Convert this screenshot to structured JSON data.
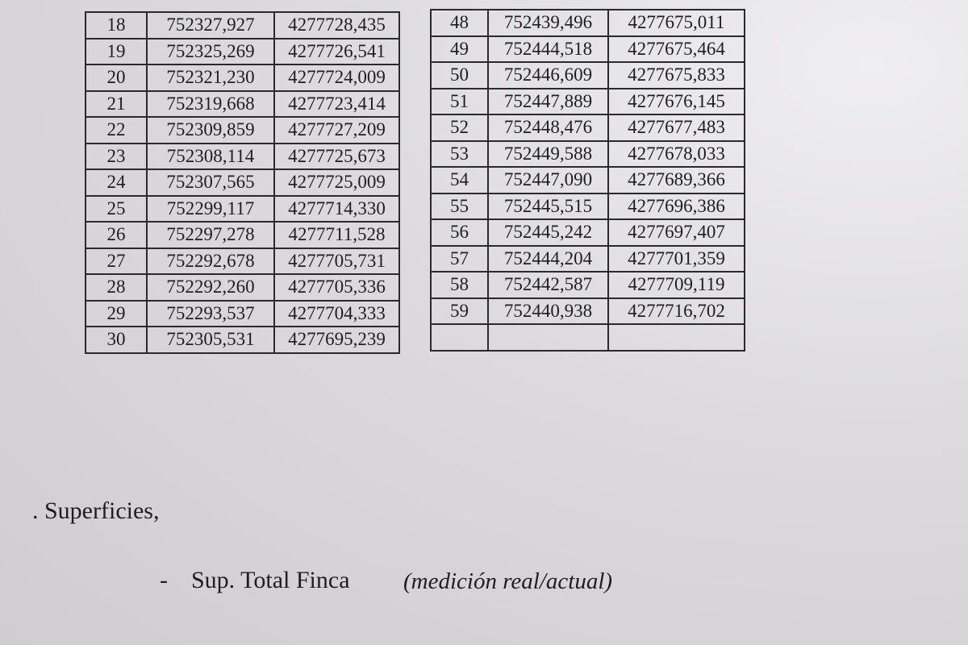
{
  "left_table": {
    "rows": [
      [
        "18",
        "752327,927",
        "4277728,435"
      ],
      [
        "19",
        "752325,269",
        "4277726,541"
      ],
      [
        "20",
        "752321,230",
        "4277724,009"
      ],
      [
        "21",
        "752319,668",
        "4277723,414"
      ],
      [
        "22",
        "752309,859",
        "4277727,209"
      ],
      [
        "23",
        "752308,114",
        "4277725,673"
      ],
      [
        "24",
        "752307,565",
        "4277725,009"
      ],
      [
        "25",
        "752299,117",
        "4277714,330"
      ],
      [
        "26",
        "752297,278",
        "4277711,528"
      ],
      [
        "27",
        "752292,678",
        "4277705,731"
      ],
      [
        "28",
        "752292,260",
        "4277705,336"
      ],
      [
        "29",
        "752293,537",
        "4277704,333"
      ],
      [
        "30",
        "752305,531",
        "4277695,239"
      ]
    ]
  },
  "right_table": {
    "rows": [
      [
        "48",
        "752439,496",
        "4277675,011"
      ],
      [
        "49",
        "752444,518",
        "4277675,464"
      ],
      [
        "50",
        "752446,609",
        "4277675,833"
      ],
      [
        "51",
        "752447,889",
        "4277676,145"
      ],
      [
        "52",
        "752448,476",
        "4277677,483"
      ],
      [
        "53",
        "752449,588",
        "4277678,033"
      ],
      [
        "54",
        "752447,090",
        "4277689,366"
      ],
      [
        "55",
        "752445,515",
        "4277696,386"
      ],
      [
        "56",
        "752445,242",
        "4277697,407"
      ],
      [
        "57",
        "752444,204",
        "4277701,359"
      ],
      [
        "58",
        "752442,587",
        "4277709,119"
      ],
      [
        "59",
        "752440,938",
        "4277716,702"
      ]
    ]
  },
  "section": {
    "title": ". Superficies,",
    "item": {
      "bullet": "-",
      "label": "Sup. Total Finca",
      "note": "(medición real/actual)"
    }
  }
}
